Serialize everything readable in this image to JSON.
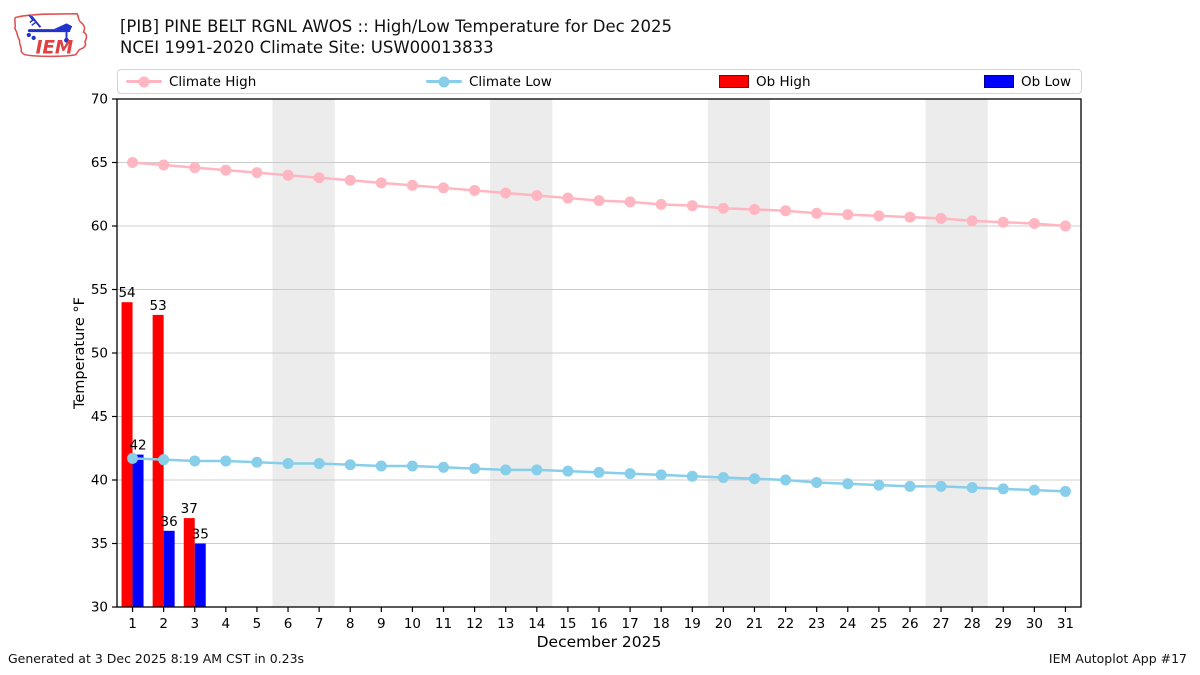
{
  "header": {
    "logo_text": "IEM",
    "title_line1": "[PIB] PINE BELT RGNL AWOS :: High/Low Temperature for Dec 2025",
    "title_line2": "NCEI 1991-2020 Climate Site: USW00013833"
  },
  "legend": {
    "position": "top",
    "items": [
      {
        "label": "Climate High",
        "type": "line",
        "color": "#ffb6c1"
      },
      {
        "label": "Climate Low",
        "type": "line",
        "color": "#87ceeb"
      },
      {
        "label": "Ob High",
        "type": "patch",
        "color": "#ff0000"
      },
      {
        "label": "Ob Low",
        "type": "patch",
        "color": "#0000ff"
      }
    ]
  },
  "chart_data": {
    "type": "line+bar",
    "title": "[PIB] PINE BELT RGNL AWOS :: High/Low Temperature for Dec 2025",
    "subtitle": "NCEI 1991-2020 Climate Site: USW00013833",
    "xlabel": "December 2025",
    "ylabel": "Temperature °F",
    "ylim": [
      30,
      70
    ],
    "yticks": [
      30,
      35,
      40,
      45,
      50,
      55,
      60,
      65,
      70
    ],
    "x": [
      1,
      2,
      3,
      4,
      5,
      6,
      7,
      8,
      9,
      10,
      11,
      12,
      13,
      14,
      15,
      16,
      17,
      18,
      19,
      20,
      21,
      22,
      23,
      24,
      25,
      26,
      27,
      28,
      29,
      30,
      31
    ],
    "grid": "horizontal",
    "grid_color": "#cccccc",
    "band_color": "#ececec",
    "weekend_bands": [
      [
        5.5,
        7.5
      ],
      [
        12.5,
        14.5
      ],
      [
        19.5,
        21.5
      ],
      [
        26.5,
        28.5
      ]
    ],
    "series": [
      {
        "name": "Climate High",
        "type": "line",
        "color": "#ffb6c1",
        "values": [
          65.0,
          64.8,
          64.6,
          64.4,
          64.2,
          64.0,
          63.8,
          63.6,
          63.4,
          63.2,
          63.0,
          62.8,
          62.6,
          62.4,
          62.2,
          62.0,
          61.9,
          61.7,
          61.6,
          61.4,
          61.3,
          61.2,
          61.0,
          60.9,
          60.8,
          60.7,
          60.6,
          60.4,
          60.3,
          60.2,
          60.0
        ]
      },
      {
        "name": "Climate Low",
        "type": "line",
        "color": "#87ceeb",
        "values": [
          41.7,
          41.6,
          41.5,
          41.5,
          41.4,
          41.3,
          41.3,
          41.2,
          41.1,
          41.1,
          41.0,
          40.9,
          40.8,
          40.8,
          40.7,
          40.6,
          40.5,
          40.4,
          40.3,
          40.2,
          40.1,
          40.0,
          39.8,
          39.7,
          39.6,
          39.5,
          39.5,
          39.4,
          39.3,
          39.2,
          39.1
        ]
      },
      {
        "name": "Ob High",
        "type": "bar",
        "color": "#ff0000",
        "days": [
          1,
          2,
          3
        ],
        "values": [
          54,
          53,
          37
        ]
      },
      {
        "name": "Ob Low",
        "type": "bar",
        "color": "#0000ff",
        "days": [
          1,
          2,
          3
        ],
        "values": [
          42,
          36,
          35
        ]
      }
    ]
  },
  "footer": {
    "left": "Generated at 3 Dec 2025 8:19 AM CST in 0.23s",
    "right": "IEM Autoplot App #17"
  }
}
